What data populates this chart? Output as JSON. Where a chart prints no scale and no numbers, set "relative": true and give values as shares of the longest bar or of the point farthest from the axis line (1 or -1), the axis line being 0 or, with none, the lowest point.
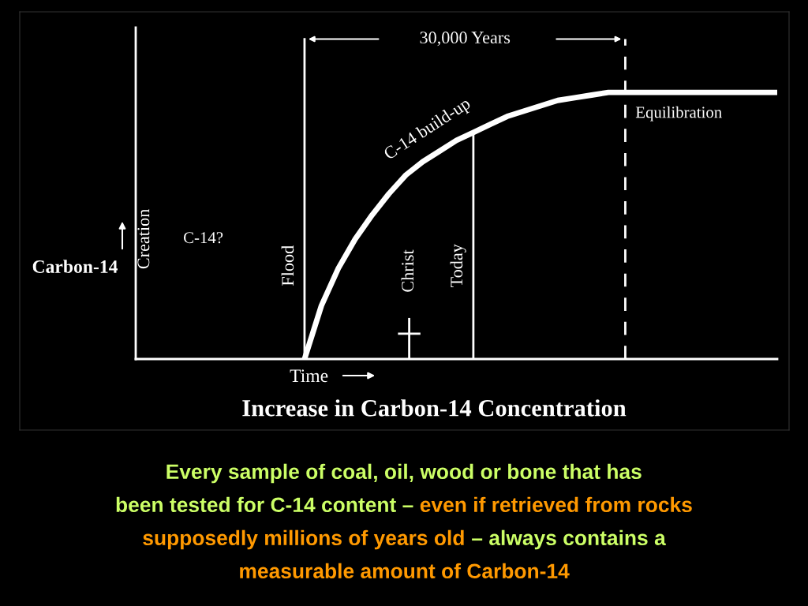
{
  "chart_data": {
    "type": "line",
    "relative": true,
    "title": "Increase in Carbon-14 Concentration",
    "xlabel": "Time",
    "ylabel": "Carbon-14",
    "categories": [
      null,
      null,
      null,
      null,
      null,
      null,
      null,
      null,
      null,
      null,
      null,
      null,
      null,
      null,
      null,
      null,
      null,
      null,
      null,
      null,
      null,
      null,
      null,
      null,
      null,
      null,
      null,
      null,
      null,
      null,
      null,
      null,
      null,
      null,
      null,
      null,
      null,
      null,
      null
    ],
    "series": [
      {
        "color": "#ffffff",
        "values": [
          null,
          null,
          null,
          null,
          null,
          null,
          null,
          null,
          null,
          null,
          0,
          0.2,
          0.34,
          0.45,
          0.54,
          0.62,
          0.69,
          0.74,
          0.78,
          0.82,
          0.85,
          0.88,
          0.91,
          0.93,
          0.95,
          0.97,
          0.98,
          0.99,
          1,
          1,
          1,
          1,
          1,
          1,
          1,
          1,
          1,
          1,
          1
        ]
      }
    ],
    "annotations": [
      "Creation",
      "C-14?",
      "Christ",
      "30,000 Years",
      "C-14 build-up",
      "Equilibration",
      "Flood",
      "Today",
      "Every sample of coal, oil, wood or bone that has",
      "been tested for C-14 content – ",
      "even if retrieved from rocks",
      "supposedly millions of years old ",
      "– always contains a",
      "measurable amount of Carbon-14"
    ],
    "grid": false,
    "marker": "none",
    "line_style": "solid"
  }
}
